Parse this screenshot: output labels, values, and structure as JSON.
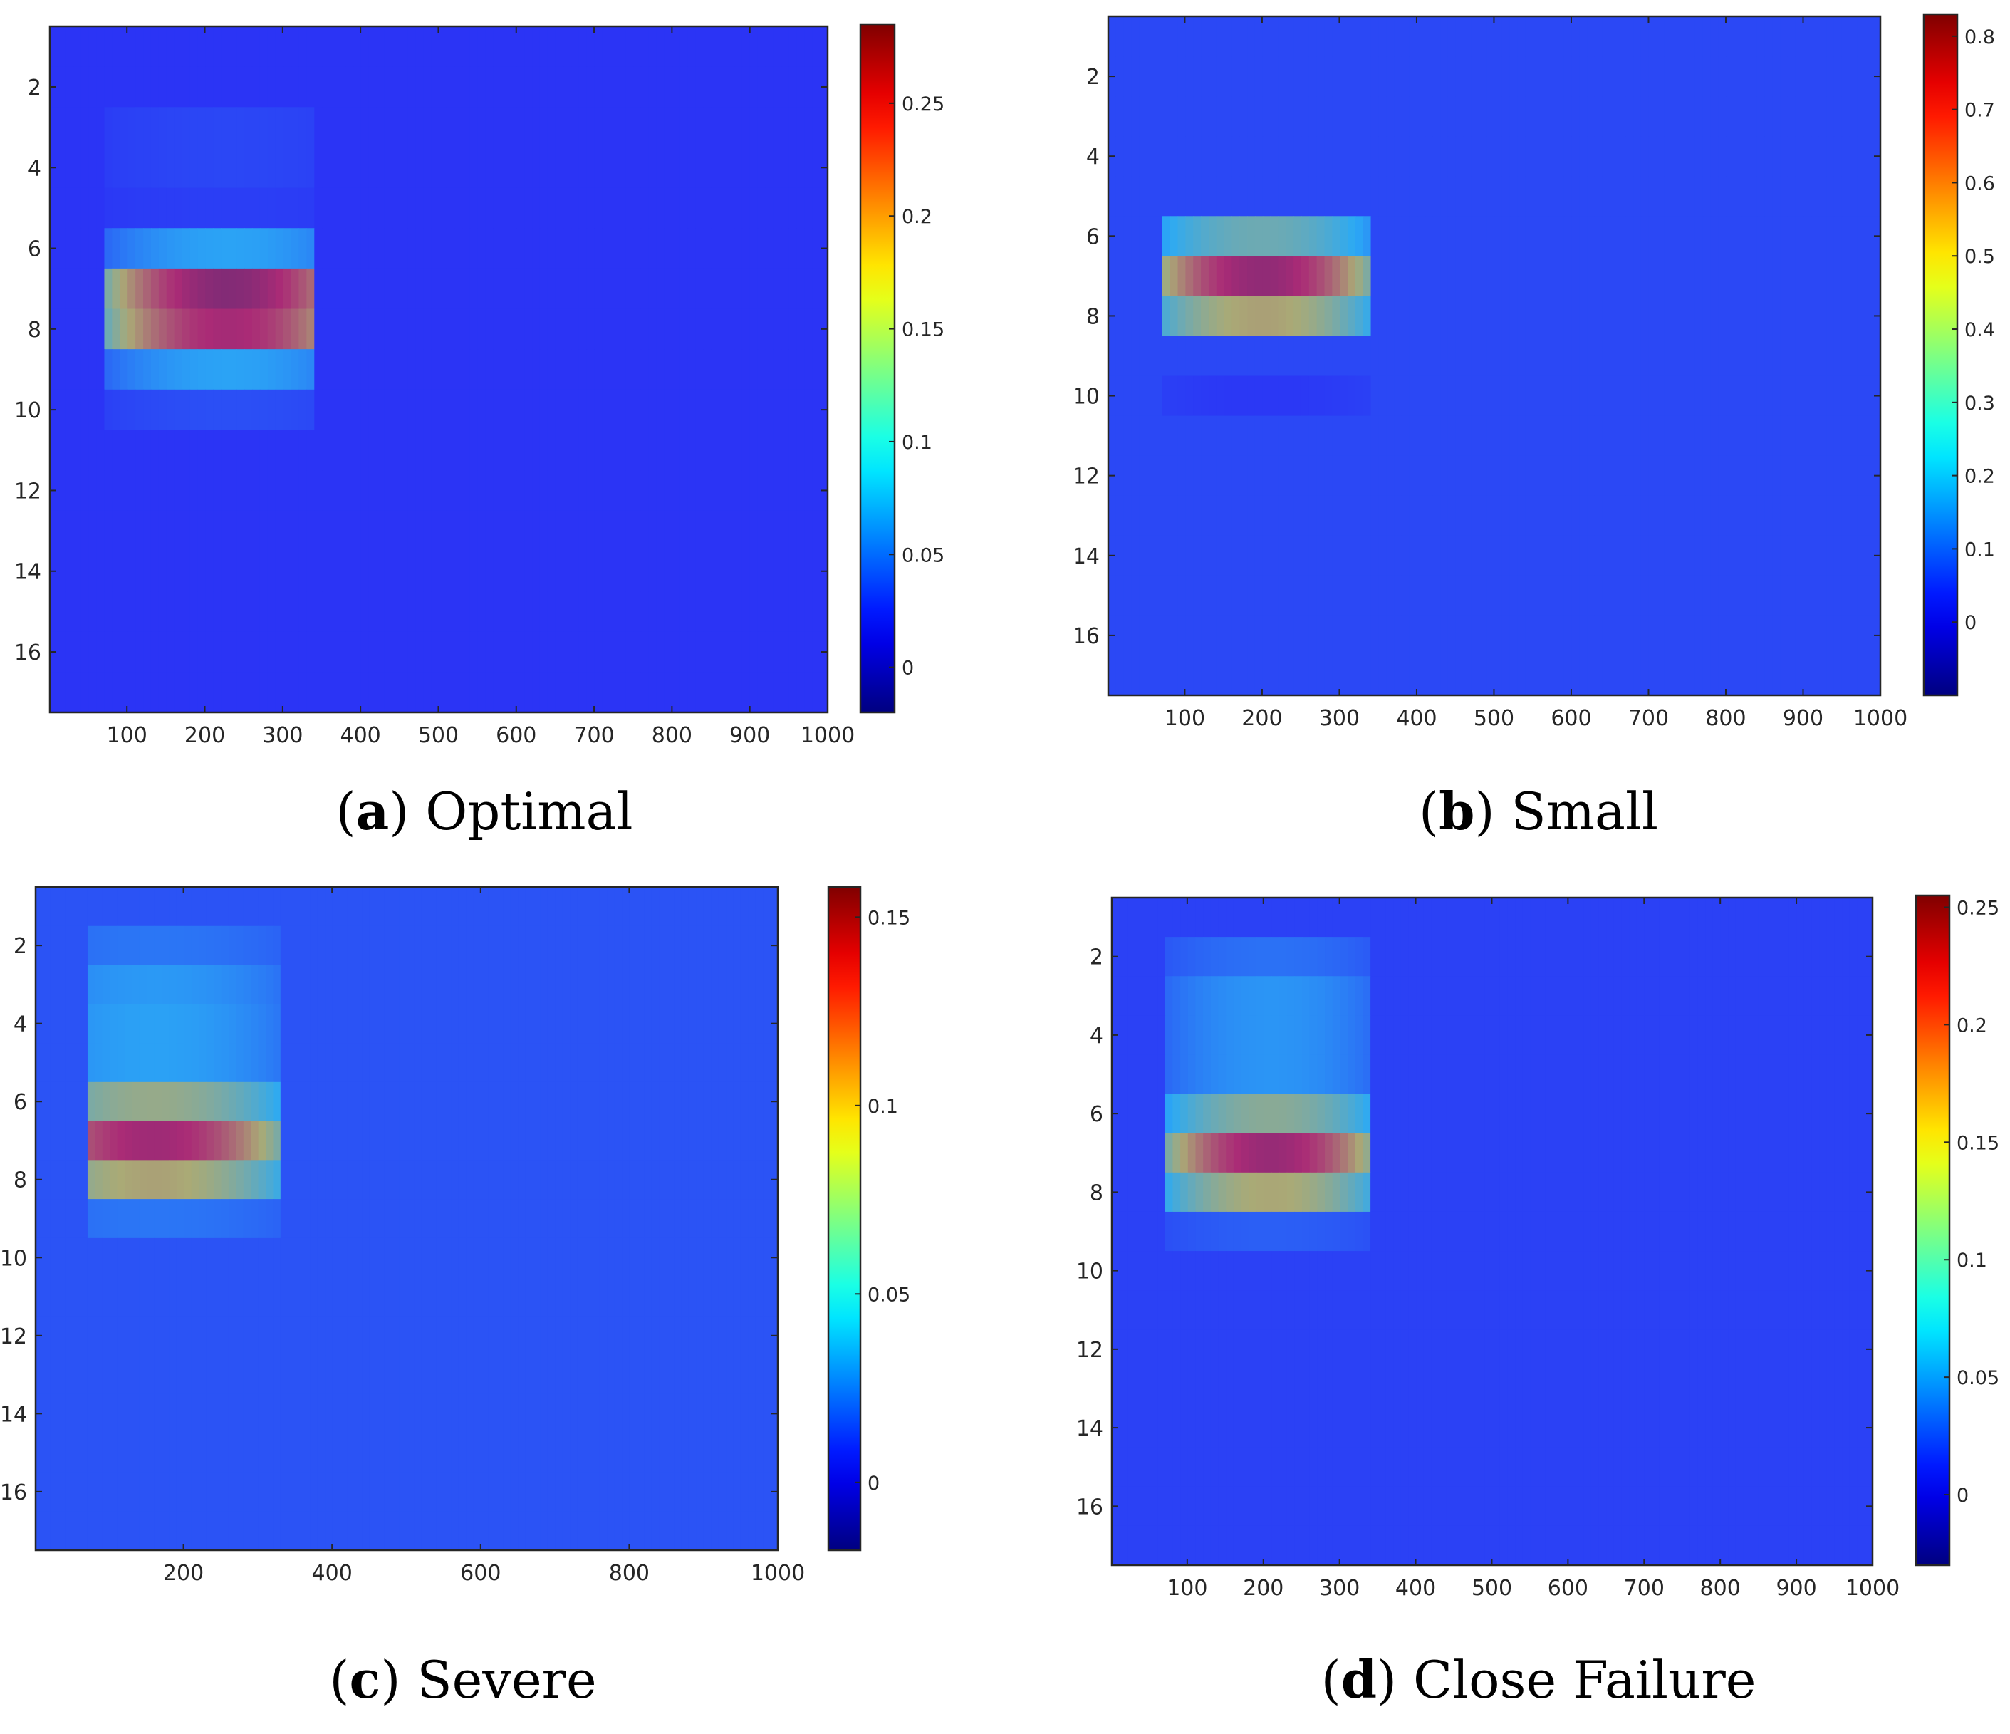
{
  "chart_data": [
    {
      "id": "a",
      "type": "heatmap",
      "caption_letter": "a",
      "caption_text": "Optimal",
      "xlim": [
        1,
        1000
      ],
      "ylim": [
        0.5,
        17.5
      ],
      "xticks": [
        100,
        200,
        300,
        400,
        500,
        600,
        700,
        800,
        900,
        1000
      ],
      "yticks": [
        2,
        4,
        6,
        8,
        10,
        12,
        14,
        16
      ],
      "clim": [
        -0.02,
        0.285
      ],
      "cticks": [
        0,
        0.05,
        0.1,
        0.15,
        0.2,
        0.25
      ],
      "base_value": 0.024,
      "hotspots": [
        {
          "x_from": 70,
          "x_to": 340,
          "x_center": 230,
          "rows": {
            "3": 0.035,
            "4": 0.035,
            "5": 0.03,
            "6": 0.09,
            "7": 0.27,
            "8": 0.25,
            "9": 0.09,
            "10": 0.04
          }
        }
      ]
    },
    {
      "id": "b",
      "type": "heatmap",
      "caption_letter": "b",
      "caption_text": "Small",
      "xlim": [
        1,
        1000
      ],
      "ylim": [
        0.5,
        17.5
      ],
      "xticks": [
        100,
        200,
        300,
        400,
        500,
        600,
        700,
        800,
        900,
        1000
      ],
      "yticks": [
        2,
        4,
        6,
        8,
        10,
        12,
        14,
        16
      ],
      "clim": [
        -0.1,
        0.83
      ],
      "cticks": [
        0,
        0.1,
        0.2,
        0.3,
        0.4,
        0.5,
        0.6,
        0.7,
        0.8
      ],
      "base_value": 0.07,
      "hotspots": [
        {
          "x_from": 70,
          "x_to": 340,
          "x_center": 200,
          "rows": {
            "6": 0.37,
            "7": 0.76,
            "8": 0.5,
            "10": 0.04
          }
        }
      ]
    },
    {
      "id": "c",
      "type": "heatmap",
      "caption_letter": "c",
      "caption_text": "Severe",
      "xlim": [
        1,
        1000
      ],
      "ylim": [
        0.5,
        17.5
      ],
      "xticks": [
        200,
        400,
        600,
        800,
        1000
      ],
      "yticks": [
        2,
        4,
        6,
        8,
        10,
        12,
        14,
        16
      ],
      "clim": [
        -0.018,
        0.158
      ],
      "cticks": [
        0,
        0.05,
        0.1,
        0.15
      ],
      "base_value": 0.018,
      "hotspots": [
        {
          "x_from": 70,
          "x_to": 330,
          "x_center": 160,
          "rows": {
            "2": 0.03,
            "3": 0.042,
            "4": 0.045,
            "5": 0.045,
            "6": 0.085,
            "7": 0.14,
            "8": 0.095,
            "9": 0.03
          }
        }
      ]
    },
    {
      "id": "d",
      "type": "heatmap",
      "caption_letter": "d",
      "caption_text": "Close Failure",
      "xlim": [
        1,
        1000
      ],
      "ylim": [
        0.5,
        17.5
      ],
      "xticks": [
        100,
        200,
        300,
        400,
        500,
        600,
        700,
        800,
        900,
        1000
      ],
      "yticks": [
        2,
        4,
        6,
        8,
        10,
        12,
        14,
        16
      ],
      "clim": [
        -0.03,
        0.255
      ],
      "cticks": [
        0,
        0.05,
        0.1,
        0.15,
        0.2,
        0.25
      ],
      "base_value": 0.018,
      "hotspots": [
        {
          "x_from": 70,
          "x_to": 340,
          "x_center": 210,
          "rows": {
            "2": 0.045,
            "3": 0.065,
            "4": 0.065,
            "5": 0.065,
            "6": 0.13,
            "7": 0.23,
            "8": 0.15,
            "9": 0.035
          }
        }
      ]
    }
  ]
}
